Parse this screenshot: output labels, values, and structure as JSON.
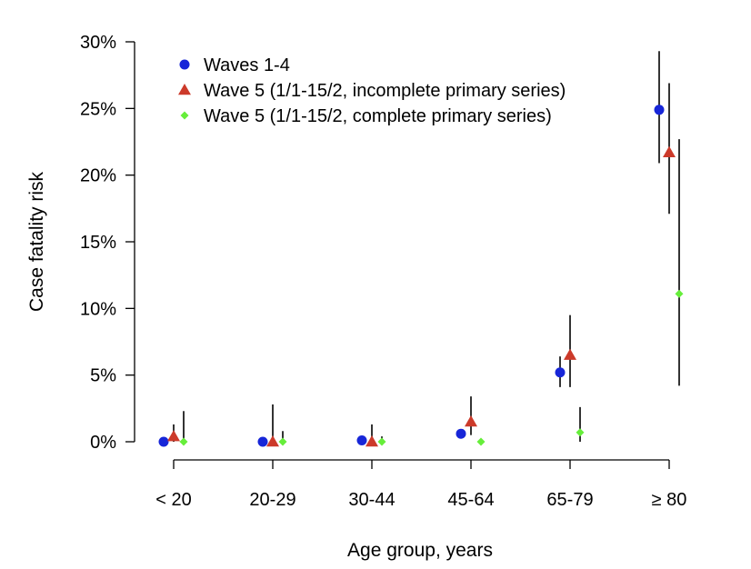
{
  "chart_data": {
    "type": "scatter",
    "title": "",
    "xlabel": "Age group, years",
    "ylabel": "Case fatality risk",
    "categories": [
      "< 20",
      "20-29",
      "30-44",
      "45-64",
      "65-79",
      "≥ 80"
    ],
    "ylim": [
      0,
      30
    ],
    "yticks": [
      0,
      5,
      10,
      15,
      20,
      25,
      30
    ],
    "ytick_labels": [
      "0%",
      "5%",
      "10%",
      "15%",
      "20%",
      "25%",
      "30%"
    ],
    "grid": false,
    "legend_position": "top-left",
    "series": [
      {
        "name": "Waves 1-4",
        "marker": "circle",
        "color": "#1726d8",
        "values": [
          0.0,
          0.0,
          0.1,
          0.6,
          5.2,
          24.9
        ],
        "lower": [
          0.0,
          0.0,
          0.0,
          0.5,
          4.1,
          20.9
        ],
        "upper": [
          0.0,
          0.0,
          0.1,
          0.7,
          6.4,
          29.3
        ]
      },
      {
        "name": "Wave 5 (1/1-15/2, incomplete primary series)",
        "marker": "triangle",
        "color": "#cc3a2a",
        "values": [
          0.4,
          0.0,
          0.0,
          1.5,
          6.5,
          21.7
        ],
        "lower": [
          0.0,
          0.0,
          0.0,
          0.5,
          4.1,
          17.1
        ],
        "upper": [
          1.3,
          2.8,
          1.3,
          3.4,
          9.5,
          26.9
        ]
      },
      {
        "name": "Wave 5 (1/1-15/2, complete primary series)",
        "marker": "diamond",
        "color": "#66ee3a",
        "values": [
          0.0,
          0.0,
          0.0,
          0.0,
          0.7,
          11.1
        ],
        "lower": [
          0.0,
          0.0,
          0.0,
          0.0,
          0.0,
          4.2
        ],
        "upper": [
          2.3,
          0.8,
          0.4,
          0.2,
          2.6,
          22.7
        ]
      }
    ]
  }
}
